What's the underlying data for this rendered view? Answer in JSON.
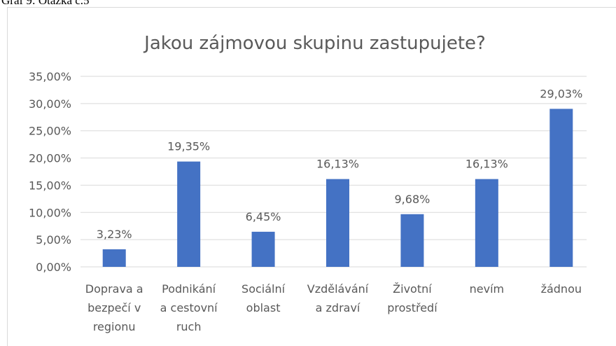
{
  "caption": "Graf 9: Otázka č.5",
  "chart_data": {
    "type": "bar",
    "title": "Jakou zájmovou skupinu zastupujete?",
    "categories": [
      "Doprava a\nbezpečí v\nregionu",
      "Podnikání\na cestovní\nruch",
      "Sociální\noblast",
      "Vzdělávání\na zdraví",
      "Životní\nprostředí",
      "nevím",
      "žádnou"
    ],
    "values": [
      3.23,
      19.35,
      6.45,
      16.13,
      9.68,
      16.13,
      29.03
    ],
    "value_labels": [
      "3,23%",
      "19,35%",
      "6,45%",
      "16,13%",
      "9,68%",
      "16,13%",
      "29,03%"
    ],
    "color": "#4472c4",
    "ylim": [
      0,
      35
    ],
    "yticks": [
      {
        "value": 0,
        "label": "0,00%"
      },
      {
        "value": 5,
        "label": "5,00%"
      },
      {
        "value": 10,
        "label": "10,00%"
      },
      {
        "value": 15,
        "label": "15,00%"
      },
      {
        "value": 20,
        "label": "20,00%"
      },
      {
        "value": 25,
        "label": "25,00%"
      },
      {
        "value": 30,
        "label": "30,00%"
      },
      {
        "value": 35,
        "label": "35,00%"
      }
    ],
    "grid": true
  }
}
